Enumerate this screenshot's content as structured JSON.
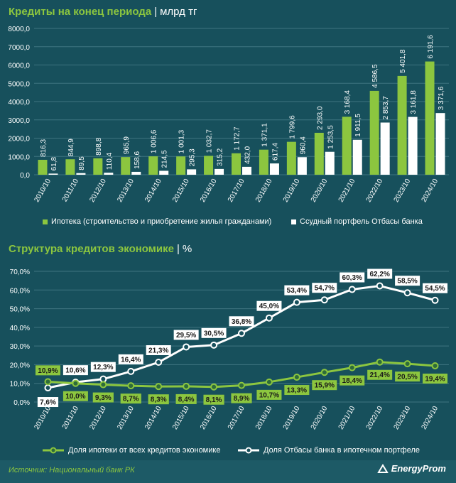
{
  "top_chart": {
    "title": "Кредиты на конец периода",
    "separator": "|",
    "unit": "млрд тг",
    "legend": [
      {
        "label": "Ипотека (строительство и приобретение жилья гражданами)",
        "color": "#8cc63f"
      },
      {
        "label": "Ссудный портфель Отбасы банка",
        "color": "#ffffff"
      }
    ]
  },
  "bottom_chart": {
    "title": "Структура кредитов экономике",
    "separator": "|",
    "unit": "%",
    "legend": [
      {
        "label": "Доля ипотеки от всех кредитов экономике",
        "color": "#8cc63f"
      },
      {
        "label": "Доля Отбасы банка в ипотечном портфеле",
        "color": "#ffffff"
      }
    ]
  },
  "footer": {
    "source": "Источник: Национальный банк РК",
    "logo": "EnergyProm"
  },
  "chart_data": [
    {
      "type": "bar",
      "title": "Кредиты на конец периода",
      "ylabel": "млрд тг",
      "ylim": [
        0,
        8000
      ],
      "yticks": [
        "0,0",
        "1000,0",
        "2000,0",
        "3000,0",
        "4000,0",
        "5000,0",
        "6000,0",
        "7000,0",
        "8000,0"
      ],
      "grid": true,
      "legend_position": "bottom",
      "categories": [
        "2010/10",
        "2011/10",
        "2012/10",
        "2013/10",
        "2014/10",
        "2015/10",
        "2016/10",
        "2017/10",
        "2018/10",
        "2019/10",
        "2020/10",
        "2021/10",
        "2022/10",
        "2023/10",
        "2024/10"
      ],
      "series": [
        {
          "name": "Ипотека (строительство и приобретение жилья гражданами)",
          "color": "#8cc63f",
          "values": [
            816.3,
            844.9,
            898.8,
            965.9,
            1006.6,
            1001.3,
            1032.7,
            1172.7,
            1371.1,
            1799.6,
            2293.0,
            3168.4,
            4586.5,
            5401.8,
            6191.6
          ],
          "labels": [
            "816,3",
            "844,9",
            "898,8",
            "965,9",
            "1 006,6",
            "1 001,3",
            "1 032,7",
            "1 172,7",
            "1 371,1",
            "1 799,6",
            "2 293,0",
            "3 168,4",
            "4 586,5",
            "5 401,8",
            "6 191,6"
          ]
        },
        {
          "name": "Ссудный портфель Отбасы банка",
          "color": "#ffffff",
          "values": [
            61.8,
            89.5,
            110.4,
            158.6,
            214.5,
            295.3,
            315.2,
            432.0,
            617.4,
            960.4,
            1253.5,
            1911.5,
            2853.7,
            3161.8,
            3371.6
          ],
          "labels": [
            "61,8",
            "89,5",
            "110,4",
            "158,6",
            "214,5",
            "295,3",
            "315,2",
            "432,0",
            "617,4",
            "960,4",
            "1 253,5",
            "1 911,5",
            "2 853,7",
            "3 161,8",
            "3 371,6"
          ]
        }
      ]
    },
    {
      "type": "line",
      "title": "Структура кредитов экономике",
      "ylabel": "%",
      "ylim": [
        0,
        70
      ],
      "yticks": [
        "0,0%",
        "10,0%",
        "20,0%",
        "30,0%",
        "40,0%",
        "50,0%",
        "60,0%",
        "70,0%"
      ],
      "grid": true,
      "legend_position": "bottom",
      "categories": [
        "2010/10",
        "2011/10",
        "2012/10",
        "2013/10",
        "2014/10",
        "2015/10",
        "2016/10",
        "2017/10",
        "2018/10",
        "2019/10",
        "2020/10",
        "2021/10",
        "2022/10",
        "2023/10",
        "2024/10"
      ],
      "series": [
        {
          "name": "Доля ипотеки от всех кредитов экономике",
          "color": "#8cc63f",
          "values": [
            10.9,
            10.0,
            9.3,
            8.7,
            8.3,
            8.4,
            8.1,
            8.9,
            10.7,
            13.3,
            15.9,
            18.4,
            21.4,
            20.5,
            19.4
          ],
          "labels": [
            "10,9%",
            "10,0%",
            "9,3%",
            "8,7%",
            "8,3%",
            "8,4%",
            "8,1%",
            "8,9%",
            "10,7%",
            "13,3%",
            "15,9%",
            "18,4%",
            "21,4%",
            "20,5%",
            "19,4%"
          ]
        },
        {
          "name": "Доля Отбасы банка в ипотечном портфеле",
          "color": "#ffffff",
          "values": [
            7.6,
            10.6,
            12.3,
            16.4,
            21.3,
            29.5,
            30.5,
            36.8,
            45.0,
            53.4,
            54.7,
            60.3,
            62.2,
            58.5,
            54.5
          ],
          "labels": [
            "7,6%",
            "10,6%",
            "12,3%",
            "16,4%",
            "21,3%",
            "29,5%",
            "30,5%",
            "36,8%",
            "45,0%",
            "53,4%",
            "54,7%",
            "60,3%",
            "62,2%",
            "58,5%",
            "54,5%"
          ]
        }
      ]
    }
  ]
}
